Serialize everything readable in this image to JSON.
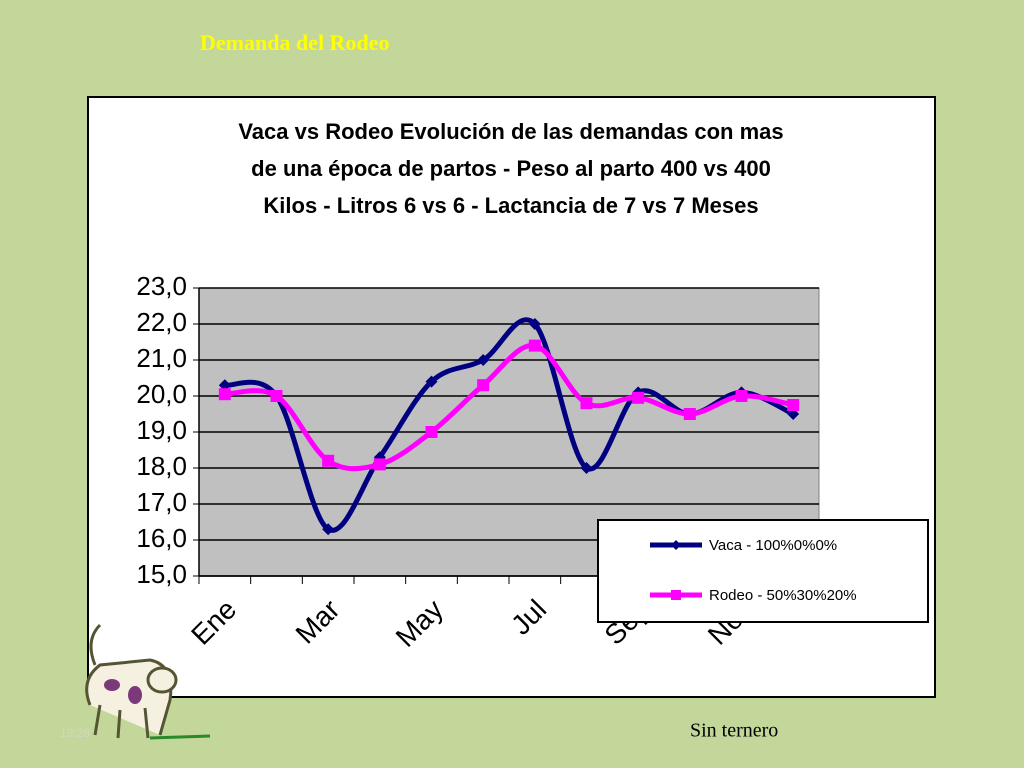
{
  "header": {
    "title": "Demanda del Rodeo"
  },
  "chart_data": {
    "type": "line",
    "title": [
      "Vaca vs Rodeo Evolución de las demandas con mas",
      "de una época de partos  - Peso al parto 400 vs 400",
      "Kilos - Litros 6 vs 6 - Lactancia de 7 vs 7 Meses"
    ],
    "categories": [
      "Ene",
      null,
      "Mar",
      null,
      "May",
      null,
      "Jul",
      null,
      "Sep",
      null,
      "Nov",
      null
    ],
    "series": [
      {
        "name": "Vaca - 100%0%0%",
        "color": "#000080",
        "values": [
          20.3,
          20.0,
          16.3,
          18.3,
          20.4,
          21.0,
          22.0,
          18.0,
          20.1,
          19.5,
          20.1,
          19.5
        ]
      },
      {
        "name": "Rodeo - 50%30%20%",
        "color": "#ff00ff",
        "values": [
          20.05,
          20.0,
          18.2,
          18.1,
          19.0,
          20.3,
          21.4,
          19.8,
          19.95,
          19.5,
          20.0,
          19.75
        ]
      }
    ],
    "ylim": [
      15,
      23
    ],
    "yticks": [
      {
        "value": 15,
        "label": "15,0"
      },
      {
        "value": 16,
        "label": "16,0"
      },
      {
        "value": 17,
        "label": "17,0"
      },
      {
        "value": 18,
        "label": "18,0"
      },
      {
        "value": 19,
        "label": "19,0"
      },
      {
        "value": 20,
        "label": "20,0"
      },
      {
        "value": 21,
        "label": "21,0"
      },
      {
        "value": 22,
        "label": "22,0"
      },
      {
        "value": 23,
        "label": "23,0"
      }
    ],
    "grid": true,
    "smooth": true,
    "legend": "lower right"
  },
  "footer": {
    "note": "Sin ternero",
    "time": "19:28"
  }
}
